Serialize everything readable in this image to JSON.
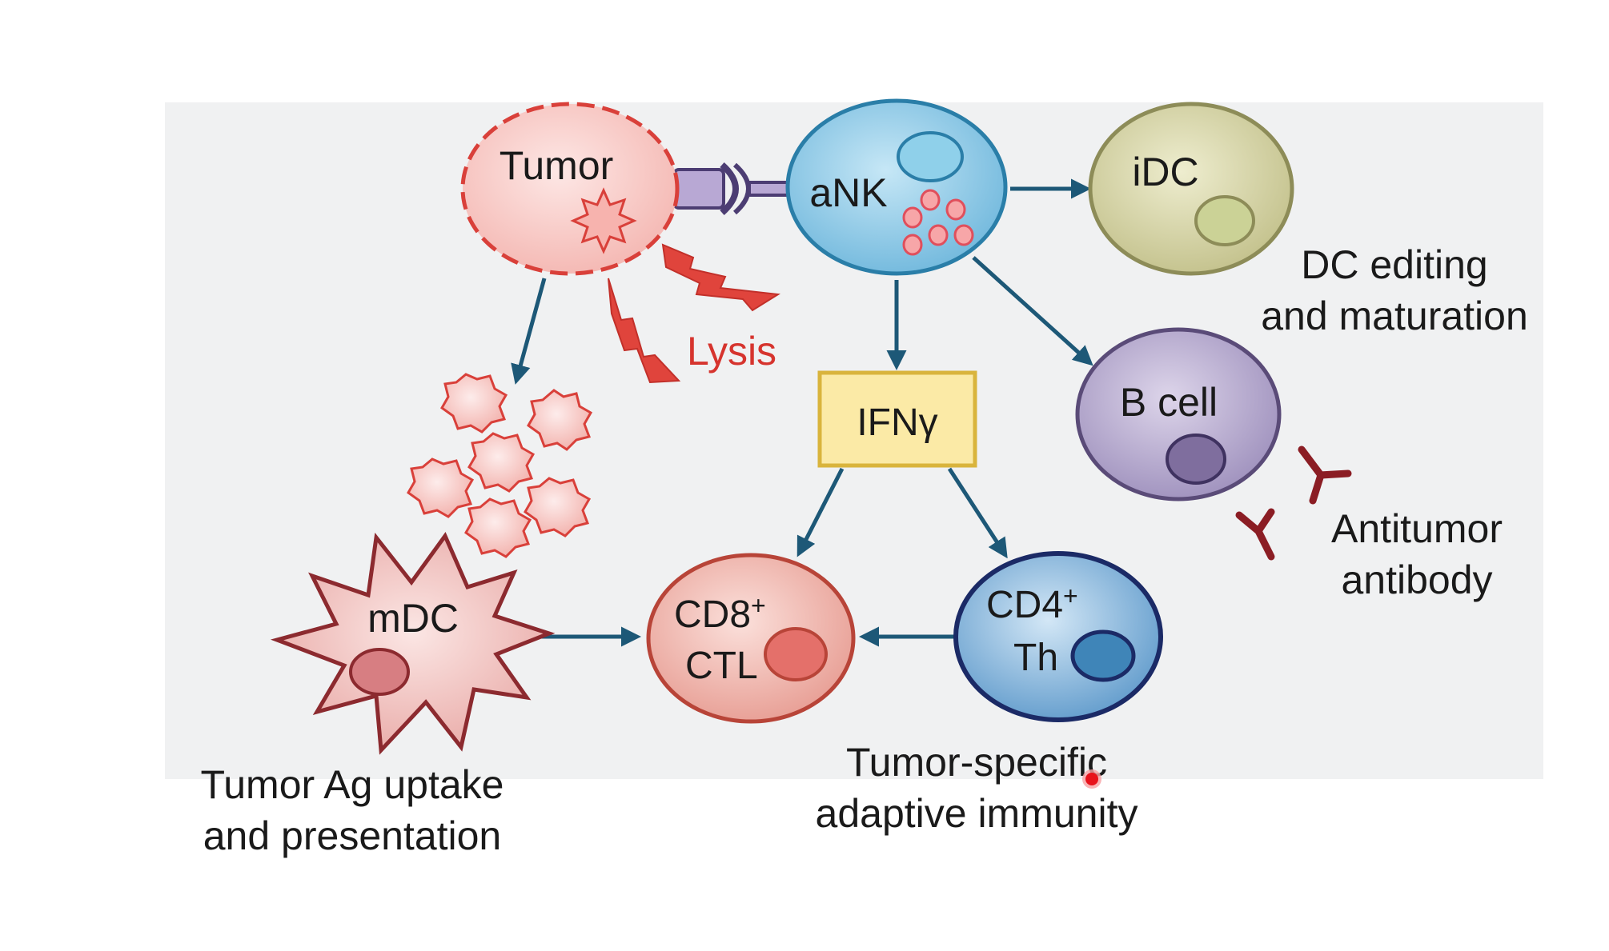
{
  "diagram": {
    "nodes": {
      "tumor": {
        "label": "Tumor"
      },
      "ank": {
        "label": "aNK"
      },
      "idc": {
        "label": "iDC"
      },
      "bcell": {
        "label": "B cell"
      },
      "ifng": {
        "label": "IFNγ"
      },
      "mdc": {
        "label": "mDC"
      },
      "cd8": {
        "label_line1": "CD8",
        "label_sup": "+",
        "label_line2": "CTL"
      },
      "cd4": {
        "label_line1": "CD4",
        "label_sup": "+",
        "label_line2": "Th"
      }
    },
    "annotations": {
      "lysis": "Lysis",
      "dc_editing_line1": "DC editing",
      "dc_editing_line2": "and maturation",
      "antibody_line1": "Antitumor",
      "antibody_line2": "antibody",
      "ag_uptake_line1": "Tumor Ag uptake",
      "ag_uptake_line2": "and presentation",
      "adaptive_line1": "Tumor-specific",
      "adaptive_line2": "adaptive immunity"
    },
    "colors": {
      "panel": "#f0f1f2",
      "arrow": "#1d5877",
      "lysis": "#d6342e",
      "tumor_fill": "#f6c6c3",
      "tumor_stroke": "#d9403a",
      "ank_fill": "#8cc9e6",
      "ank_stroke": "#2a7ea8",
      "idc_fill": "#d6d5a6",
      "idc_stroke": "#8d8c58",
      "bcell_fill": "#b7abcd",
      "bcell_stroke": "#5a4b78",
      "ifng_fill": "#fbeaa6",
      "ifng_stroke": "#d9b43c",
      "mdc_fill": "#f0c9c7",
      "mdc_stroke": "#8c2a2f",
      "cd8_fill": "#f2bcb5",
      "cd8_stroke": "#b84438",
      "cd4_fill": "#8bb9de",
      "cd4_stroke": "#1b2a66",
      "antibody": "#8b1d24",
      "cursor": "#e8121b"
    }
  }
}
